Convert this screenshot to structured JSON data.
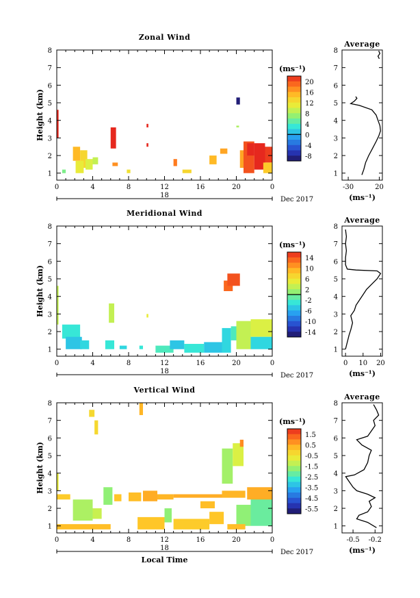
{
  "chart_data": [
    {
      "type": "heatmap",
      "title": "Zonal Wind",
      "ylabel": "Height (km)",
      "xlabel": "",
      "x_ticks": [
        "0",
        "4",
        "8",
        "12",
        "16",
        "20",
        "0"
      ],
      "y_ticks": [
        "1",
        "2",
        "3",
        "4",
        "5",
        "6",
        "7",
        "8"
      ],
      "xlim": [
        0,
        24
      ],
      "ylim": [
        0.6,
        8
      ],
      "date_day": "18",
      "date_label": "Dec 2017",
      "colorbar": {
        "unit": "(ms⁻¹)",
        "ticks": [
          "20",
          "16",
          "12",
          "8",
          "4",
          "0",
          "-4",
          "-8"
        ],
        "range": [
          -10,
          22
        ],
        "zero_line": 0
      },
      "cells": [
        {
          "t0": 0,
          "t1": 0.2,
          "z0": 3.0,
          "z1": 4.6,
          "v": 22
        },
        {
          "t0": 0.6,
          "t1": 1.0,
          "z0": 1.0,
          "z1": 1.2,
          "v": 6
        },
        {
          "t0": 1.8,
          "t1": 2.6,
          "z0": 1.7,
          "z1": 2.5,
          "v": 15
        },
        {
          "t0": 2.6,
          "t1": 3.4,
          "z0": 1.3,
          "z1": 2.3,
          "v": 13
        },
        {
          "t0": 2.1,
          "t1": 3.0,
          "z0": 1.0,
          "z1": 1.7,
          "v": 11
        },
        {
          "t0": 3.2,
          "t1": 4.0,
          "z0": 1.2,
          "z1": 1.8,
          "v": 10
        },
        {
          "t0": 4.0,
          "t1": 4.6,
          "z0": 1.5,
          "z1": 1.9,
          "v": 9
        },
        {
          "t0": 6.0,
          "t1": 6.6,
          "z0": 2.4,
          "z1": 3.6,
          "v": 22
        },
        {
          "t0": 6.2,
          "t1": 6.8,
          "z0": 1.4,
          "z1": 1.6,
          "v": 17
        },
        {
          "t0": 7.8,
          "t1": 8.2,
          "z0": 1.0,
          "z1": 1.2,
          "v": 12
        },
        {
          "t0": 10.0,
          "t1": 10.2,
          "z0": 3.6,
          "z1": 3.8,
          "v": 22
        },
        {
          "t0": 10.0,
          "t1": 10.2,
          "z0": 2.5,
          "z1": 2.7,
          "v": 22
        },
        {
          "t0": 13.0,
          "t1": 13.4,
          "z0": 1.4,
          "z1": 1.8,
          "v": 18
        },
        {
          "t0": 14.0,
          "t1": 15.0,
          "z0": 1.0,
          "z1": 1.2,
          "v": 13
        },
        {
          "t0": 17.0,
          "t1": 17.8,
          "z0": 1.5,
          "z1": 2.0,
          "v": 15
        },
        {
          "t0": 18.2,
          "t1": 19.0,
          "z0": 2.1,
          "z1": 2.4,
          "v": 16
        },
        {
          "t0": 20.0,
          "t1": 20.3,
          "z0": 3.6,
          "z1": 3.7,
          "v": 8
        },
        {
          "t0": 20.0,
          "t1": 20.4,
          "z0": 4.9,
          "z1": 5.3,
          "v": -9
        },
        {
          "t0": 20.4,
          "t1": 21.2,
          "z0": 1.3,
          "z1": 2.3,
          "v": 16
        },
        {
          "t0": 20.8,
          "t1": 22.0,
          "z0": 1.0,
          "z1": 2.8,
          "v": 20
        },
        {
          "t0": 21.2,
          "t1": 22.0,
          "z0": 2.0,
          "z1": 2.7,
          "v": 22
        },
        {
          "t0": 22.0,
          "t1": 23.2,
          "z0": 1.2,
          "z1": 2.7,
          "v": 22
        },
        {
          "t0": 23.2,
          "t1": 24.0,
          "z0": 1.6,
          "z1": 2.5,
          "v": 21
        },
        {
          "t0": 23.0,
          "t1": 24.0,
          "z0": 1.0,
          "z1": 1.6,
          "v": 14
        }
      ],
      "profile": {
        "title": "Average",
        "x_ticks": [
          "-30",
          "20"
        ],
        "xlim": [
          -40,
          25
        ],
        "xlabel": "(ms⁻¹)",
        "y_ticks": [
          "1",
          "2",
          "3",
          "4",
          "5",
          "6",
          "7",
          "8"
        ],
        "points": [
          [
            -8,
            0.9
          ],
          [
            -5,
            1.2
          ],
          [
            -2,
            1.6
          ],
          [
            3,
            2.0
          ],
          [
            9,
            2.4
          ],
          [
            15,
            2.8
          ],
          [
            19,
            3.1
          ],
          [
            22,
            3.4
          ],
          [
            21,
            3.7
          ],
          [
            18,
            4.0
          ],
          [
            15,
            4.3
          ],
          [
            8,
            4.6
          ],
          [
            -12,
            4.85
          ],
          [
            -26,
            4.95
          ],
          [
            -20,
            5.1
          ],
          [
            -16,
            5.25
          ],
          [
            -18,
            5.35
          ]
        ],
        "points2": [
          [
            20,
            7.5
          ],
          [
            18,
            7.65
          ],
          [
            21,
            7.8
          ],
          [
            19,
            7.95
          ]
        ]
      }
    },
    {
      "type": "heatmap",
      "title": "Meridional Wind",
      "ylabel": "Height (km)",
      "xlabel": "",
      "x_ticks": [
        "0",
        "4",
        "8",
        "12",
        "16",
        "20",
        "0"
      ],
      "y_ticks": [
        "1",
        "2",
        "3",
        "4",
        "5",
        "6",
        "7",
        "8"
      ],
      "xlim": [
        0,
        24
      ],
      "ylim": [
        0.6,
        8
      ],
      "date_day": "18",
      "date_label": "Dec 2017",
      "colorbar": {
        "unit": "(ms⁻¹)",
        "ticks": [
          "14",
          "10",
          "6",
          "2",
          "-2",
          "-6",
          "-10",
          "-14"
        ],
        "range": [
          -16,
          16
        ],
        "zero_line": 0
      },
      "cells": [
        {
          "t0": 0,
          "t1": 0.2,
          "z0": 2.4,
          "z1": 4.6,
          "v": 3
        },
        {
          "t0": 0.6,
          "t1": 2.6,
          "z0": 1.6,
          "z1": 2.4,
          "v": -3
        },
        {
          "t0": 1.0,
          "t1": 2.8,
          "z0": 1.0,
          "z1": 1.7,
          "v": -5
        },
        {
          "t0": 2.6,
          "t1": 3.6,
          "z0": 1.0,
          "z1": 1.5,
          "v": -4
        },
        {
          "t0": 5.8,
          "t1": 6.4,
          "z0": 2.5,
          "z1": 3.6,
          "v": 3
        },
        {
          "t0": 5.4,
          "t1": 6.4,
          "z0": 1.0,
          "z1": 1.5,
          "v": -3
        },
        {
          "t0": 7.0,
          "t1": 7.8,
          "z0": 1.0,
          "z1": 1.2,
          "v": -4
        },
        {
          "t0": 9.2,
          "t1": 9.6,
          "z0": 1.0,
          "z1": 1.2,
          "v": -3
        },
        {
          "t0": 10.0,
          "t1": 10.2,
          "z0": 2.8,
          "z1": 3.0,
          "v": 5
        },
        {
          "t0": 11.0,
          "t1": 13.0,
          "z0": 0.8,
          "z1": 1.2,
          "v": -2
        },
        {
          "t0": 12.6,
          "t1": 14.2,
          "z0": 1.0,
          "z1": 1.5,
          "v": -5
        },
        {
          "t0": 14.2,
          "t1": 16.4,
          "z0": 0.8,
          "z1": 1.3,
          "v": -3
        },
        {
          "t0": 16.4,
          "t1": 18.4,
          "z0": 0.8,
          "z1": 1.4,
          "v": -5
        },
        {
          "t0": 18.4,
          "t1": 19.4,
          "z0": 0.8,
          "z1": 2.2,
          "v": -4
        },
        {
          "t0": 19.4,
          "t1": 20.0,
          "z0": 1.5,
          "z1": 2.3,
          "v": -2
        },
        {
          "t0": 18.6,
          "t1": 19.6,
          "z0": 4.3,
          "z1": 4.9,
          "v": 13
        },
        {
          "t0": 19.0,
          "t1": 20.4,
          "z0": 4.6,
          "z1": 5.3,
          "v": 14
        },
        {
          "t0": 20.0,
          "t1": 21.6,
          "z0": 1.0,
          "z1": 2.6,
          "v": 3
        },
        {
          "t0": 21.6,
          "t1": 24.0,
          "z0": 1.7,
          "z1": 2.7,
          "v": 4
        },
        {
          "t0": 21.6,
          "t1": 24.0,
          "z0": 1.0,
          "z1": 1.7,
          "v": -4
        }
      ],
      "profile": {
        "title": "Average",
        "x_ticks": [
          "0",
          "10",
          "20"
        ],
        "xlim": [
          -2,
          21
        ],
        "xlabel": "(ms⁻¹)",
        "y_ticks": [
          "1",
          "2",
          "3",
          "4",
          "5",
          "6",
          "7",
          "8"
        ],
        "points": [
          [
            0,
            1.0
          ],
          [
            1,
            1.4
          ],
          [
            2,
            1.8
          ],
          [
            3,
            2.1
          ],
          [
            4,
            2.5
          ],
          [
            3,
            2.9
          ],
          [
            5,
            3.2
          ],
          [
            6,
            3.5
          ],
          [
            8,
            3.8
          ],
          [
            10,
            4.1
          ],
          [
            12,
            4.4
          ],
          [
            15,
            4.7
          ],
          [
            18,
            5.0
          ],
          [
            20,
            5.3
          ],
          [
            18,
            5.45
          ],
          [
            6,
            5.5
          ],
          [
            1,
            5.55
          ],
          [
            0,
            5.8
          ],
          [
            0,
            6.2
          ],
          [
            0.5,
            6.6
          ],
          [
            0,
            7.0
          ],
          [
            0.5,
            7.4
          ],
          [
            0,
            7.8
          ]
        ]
      }
    },
    {
      "type": "heatmap",
      "title": "Vertical Wind",
      "ylabel": "Height (km)",
      "xlabel": "Local Time",
      "x_ticks": [
        "0",
        "4",
        "8",
        "12",
        "16",
        "20",
        "0"
      ],
      "y_ticks": [
        "1",
        "2",
        "3",
        "4",
        "5",
        "6",
        "7",
        "8"
      ],
      "xlim": [
        0,
        24
      ],
      "ylim": [
        0.6,
        8
      ],
      "date_day": "18",
      "date_label": "Dec 2017",
      "colorbar": {
        "unit": "(ms⁻¹)",
        "ticks": [
          "1.5",
          "0.5",
          "-0.5",
          "-1.5",
          "-2.5",
          "-3.5",
          "-4.5",
          "-5.5"
        ],
        "range": [
          -6,
          2
        ],
        "zero_line": null
      },
      "cells": [
        {
          "t0": 0,
          "t1": 0.2,
          "z0": 3.0,
          "z1": 4.0,
          "v": -0.8
        },
        {
          "t0": 0,
          "t1": 6.0,
          "z0": 0.8,
          "z1": 1.1,
          "v": 0.2
        },
        {
          "t0": 0,
          "t1": 1.5,
          "z0": 2.5,
          "z1": 2.8,
          "v": 0.0
        },
        {
          "t0": 1.8,
          "t1": 4.0,
          "z0": 1.3,
          "z1": 2.5,
          "v": -1.5
        },
        {
          "t0": 4.0,
          "t1": 5.0,
          "z0": 1.4,
          "z1": 2.0,
          "v": -1.2
        },
        {
          "t0": 5.2,
          "t1": 6.2,
          "z0": 2.2,
          "z1": 3.2,
          "v": -1.8
        },
        {
          "t0": 6.4,
          "t1": 7.2,
          "z0": 2.4,
          "z1": 2.8,
          "v": 0.1
        },
        {
          "t0": 8.0,
          "t1": 9.4,
          "z0": 2.4,
          "z1": 2.9,
          "v": 0.2
        },
        {
          "t0": 9.2,
          "t1": 9.6,
          "z0": 7.3,
          "z1": 8.0,
          "v": 0.3
        },
        {
          "t0": 3.6,
          "t1": 4.2,
          "z0": 7.2,
          "z1": 7.6,
          "v": -0.3
        },
        {
          "t0": 4.2,
          "t1": 4.6,
          "z0": 6.2,
          "z1": 7.0,
          "v": -0.3
        },
        {
          "t0": 9.6,
          "t1": 11.2,
          "z0": 2.4,
          "z1": 3.0,
          "v": 0.4
        },
        {
          "t0": 11.2,
          "t1": 13.0,
          "z0": 2.5,
          "z1": 2.8,
          "v": 0.3
        },
        {
          "t0": 9.0,
          "t1": 12.0,
          "z0": 0.8,
          "z1": 1.5,
          "v": 0.1
        },
        {
          "t0": 12.0,
          "t1": 12.8,
          "z0": 1.2,
          "z1": 2.0,
          "v": -1.8
        },
        {
          "t0": 13.0,
          "t1": 17.0,
          "z0": 0.8,
          "z1": 1.4,
          "v": 0.0
        },
        {
          "t0": 13.0,
          "t1": 18.4,
          "z0": 2.6,
          "z1": 2.8,
          "v": 0.4
        },
        {
          "t0": 16.0,
          "t1": 17.6,
          "z0": 2.0,
          "z1": 2.4,
          "v": 0.2
        },
        {
          "t0": 17.0,
          "t1": 18.6,
          "z0": 1.1,
          "z1": 1.8,
          "v": 0.1
        },
        {
          "t0": 18.4,
          "t1": 19.6,
          "z0": 3.4,
          "z1": 5.4,
          "v": -1.6
        },
        {
          "t0": 19.6,
          "t1": 20.8,
          "z0": 4.4,
          "z1": 5.7,
          "v": -1.0
        },
        {
          "t0": 20.4,
          "t1": 20.8,
          "z0": 5.5,
          "z1": 5.9,
          "v": 0.8
        },
        {
          "t0": 18.4,
          "t1": 21.0,
          "z0": 2.6,
          "z1": 3.0,
          "v": 0.3
        },
        {
          "t0": 20.0,
          "t1": 21.6,
          "z0": 1.0,
          "z1": 2.2,
          "v": -1.8
        },
        {
          "t0": 21.6,
          "t1": 24.0,
          "z0": 1.0,
          "z1": 2.6,
          "v": -2.2
        },
        {
          "t0": 21.2,
          "t1": 24.0,
          "z0": 2.5,
          "z1": 3.2,
          "v": 0.4
        },
        {
          "t0": 19.0,
          "t1": 21.0,
          "z0": 0.8,
          "z1": 1.1,
          "v": 0.2
        }
      ],
      "profile": {
        "title": "Average",
        "x_ticks": [
          "-0.5",
          "-0.2"
        ],
        "xlim": [
          -0.65,
          -0.1
        ],
        "xlabel": "(ms⁻¹)",
        "y_ticks": [
          "1",
          "2",
          "3",
          "4",
          "5",
          "6",
          "7",
          "8"
        ],
        "points": [
          [
            -0.18,
            0.9
          ],
          [
            -0.3,
            1.2
          ],
          [
            -0.45,
            1.4
          ],
          [
            -0.42,
            1.6
          ],
          [
            -0.3,
            1.8
          ],
          [
            -0.25,
            2.1
          ],
          [
            -0.28,
            2.4
          ],
          [
            -0.2,
            2.6
          ],
          [
            -0.3,
            2.8
          ],
          [
            -0.45,
            3.0
          ],
          [
            -0.5,
            3.2
          ],
          [
            -0.55,
            3.5
          ],
          [
            -0.6,
            3.8
          ],
          [
            -0.48,
            3.9
          ],
          [
            -0.35,
            4.2
          ],
          [
            -0.3,
            4.6
          ],
          [
            -0.28,
            5.0
          ],
          [
            -0.25,
            5.3
          ],
          [
            -0.38,
            5.6
          ],
          [
            -0.45,
            5.9
          ],
          [
            -0.3,
            6.1
          ],
          [
            -0.25,
            6.4
          ],
          [
            -0.2,
            6.7
          ],
          [
            -0.22,
            7.0
          ],
          [
            -0.15,
            7.3
          ],
          [
            -0.18,
            7.6
          ],
          [
            -0.22,
            7.9
          ]
        ]
      }
    }
  ]
}
